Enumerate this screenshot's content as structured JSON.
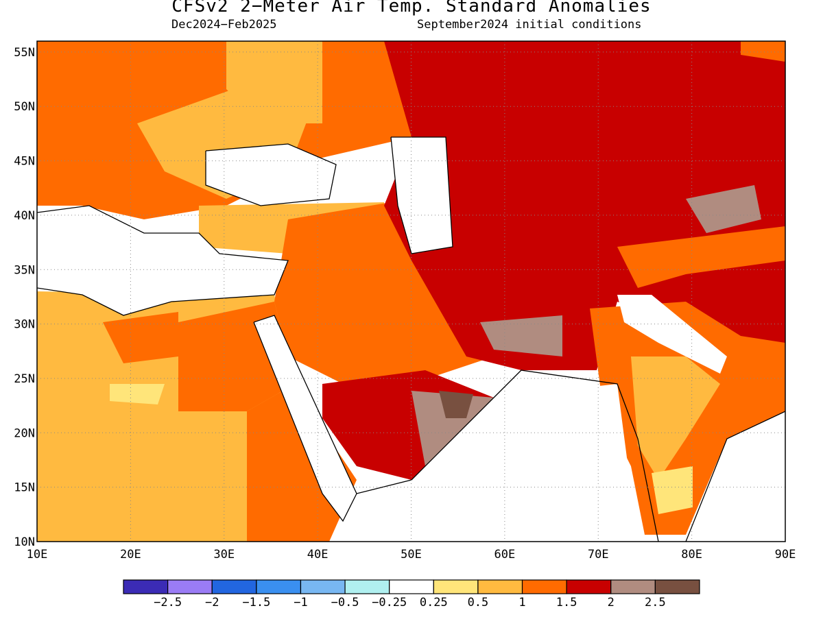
{
  "title": "CFSv2 2−Meter Air Temp. Standard Anomalies",
  "subtitle_left": "Dec2024−Feb2025",
  "subtitle_right": "September2024 initial conditions",
  "map": {
    "lon_labels": [
      "10E",
      "20E",
      "30E",
      "40E",
      "50E",
      "60E",
      "70E",
      "80E",
      "90E"
    ],
    "lat_labels": [
      "55N",
      "50N",
      "45N",
      "40N",
      "35N",
      "30N",
      "25N",
      "20N",
      "15N",
      "10N"
    ],
    "lon_range": [
      10,
      90
    ],
    "lat_range": [
      10,
      56
    ],
    "grid": "dotted"
  },
  "legend": {
    "colors": [
      "#3b2bb5",
      "#9a7cf5",
      "#2266e0",
      "#3a8ff0",
      "#78b7f2",
      "#b0f0f0",
      "#ffffff",
      "#ffe57a",
      "#ffba40",
      "#ff6b00",
      "#c80000",
      "#b08c80",
      "#785040"
    ],
    "labels": [
      "−2.5",
      "−2",
      "−1.5",
      "−1",
      "−0.5",
      "−0.25",
      "0.25",
      "0.5",
      "1",
      "1.5",
      "2",
      "2.5"
    ]
  }
}
